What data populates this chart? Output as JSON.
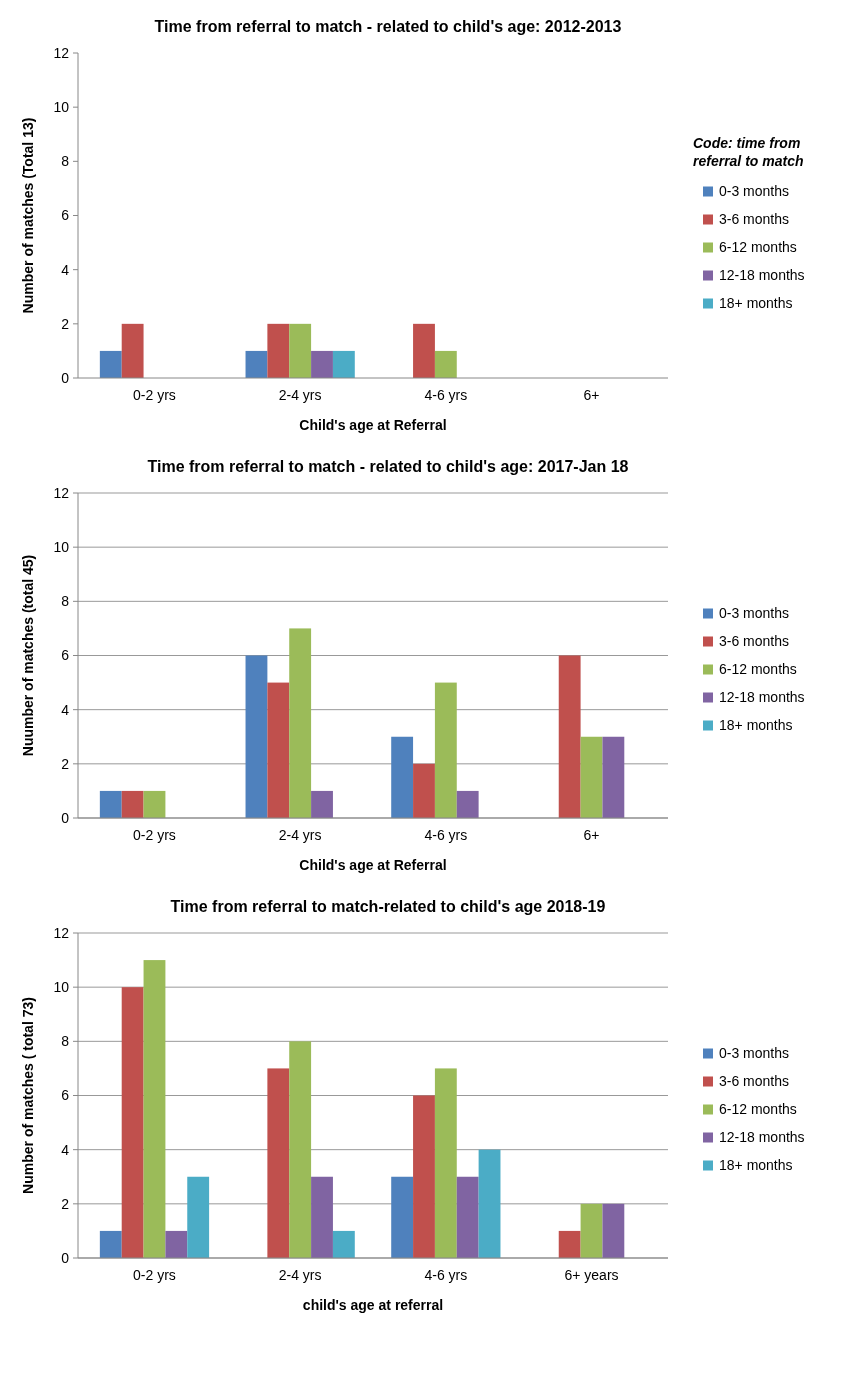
{
  "chart_data": [
    {
      "type": "bar",
      "title": "Time from referral to match - related to child's age: 2012-2013",
      "xlabel": "Child's age at Referral",
      "ylabel": "Number of matches (Total 13)",
      "legend_title": "Code: time from referral to match",
      "categories": [
        "0-2 yrs",
        "2-4 yrs",
        "4-6 yrs",
        "6+"
      ],
      "ylim": [
        0,
        12
      ],
      "yticks": [
        0,
        2,
        4,
        6,
        8,
        10,
        12
      ],
      "grid": false,
      "legend": "right",
      "series": [
        {
          "name": "0-3 months",
          "color": "#4f81bd",
          "values": [
            1,
            1,
            null,
            null
          ]
        },
        {
          "name": "3-6 months",
          "color": "#c0504d",
          "values": [
            2,
            2,
            2,
            null
          ]
        },
        {
          "name": "6-12 months",
          "color": "#9bbb59",
          "values": [
            null,
            2,
            1,
            null
          ]
        },
        {
          "name": "12-18 months",
          "color": "#8064a2",
          "values": [
            null,
            1,
            null,
            null
          ]
        },
        {
          "name": "18+ months",
          "color": "#4bacc6",
          "values": [
            null,
            1,
            null,
            null
          ]
        }
      ]
    },
    {
      "type": "bar",
      "title": "Time from referral to match - related to child's age: 2017-Jan 18",
      "xlabel": "Child's age at Referral",
      "ylabel": "Nuumber of matches (total 45)",
      "categories": [
        "0-2 yrs",
        "2-4 yrs",
        "4-6 yrs",
        "6+"
      ],
      "ylim": [
        0,
        12
      ],
      "yticks": [
        0,
        2,
        4,
        6,
        8,
        10,
        12
      ],
      "grid": "y",
      "legend": "right",
      "series": [
        {
          "name": "0-3 months",
          "color": "#4f81bd",
          "values": [
            1,
            6,
            3,
            null
          ]
        },
        {
          "name": "3-6 months",
          "color": "#c0504d",
          "values": [
            1,
            5,
            2,
            6
          ]
        },
        {
          "name": "6-12 months",
          "color": "#9bbb59",
          "values": [
            1,
            7,
            5,
            3
          ]
        },
        {
          "name": "12-18 months",
          "color": "#8064a2",
          "values": [
            null,
            1,
            1,
            3
          ]
        },
        {
          "name": "18+ months",
          "color": "#4bacc6",
          "values": [
            null,
            null,
            null,
            null
          ]
        }
      ]
    },
    {
      "type": "bar",
      "title": "Time from referral to match-related to child's age 2018-19",
      "xlabel": "child's age at referral",
      "ylabel": "Number of matches ( total 73)",
      "categories": [
        "0-2 yrs",
        "2-4 yrs",
        "4-6 yrs",
        "6+ years"
      ],
      "ylim": [
        0,
        12
      ],
      "yticks": [
        0,
        2,
        4,
        6,
        8,
        10,
        12
      ],
      "grid": "y",
      "legend": "right",
      "series": [
        {
          "name": "0-3 months",
          "color": "#4f81bd",
          "values": [
            1,
            null,
            3,
            null
          ]
        },
        {
          "name": "3-6 months",
          "color": "#c0504d",
          "values": [
            10,
            7,
            6,
            1
          ]
        },
        {
          "name": "6-12 months",
          "color": "#9bbb59",
          "values": [
            11,
            8,
            7,
            2
          ]
        },
        {
          "name": "12-18 months",
          "color": "#8064a2",
          "values": [
            1,
            3,
            3,
            2
          ]
        },
        {
          "name": "18+ months",
          "color": "#4bacc6",
          "values": [
            3,
            1,
            4,
            null
          ]
        }
      ]
    }
  ]
}
